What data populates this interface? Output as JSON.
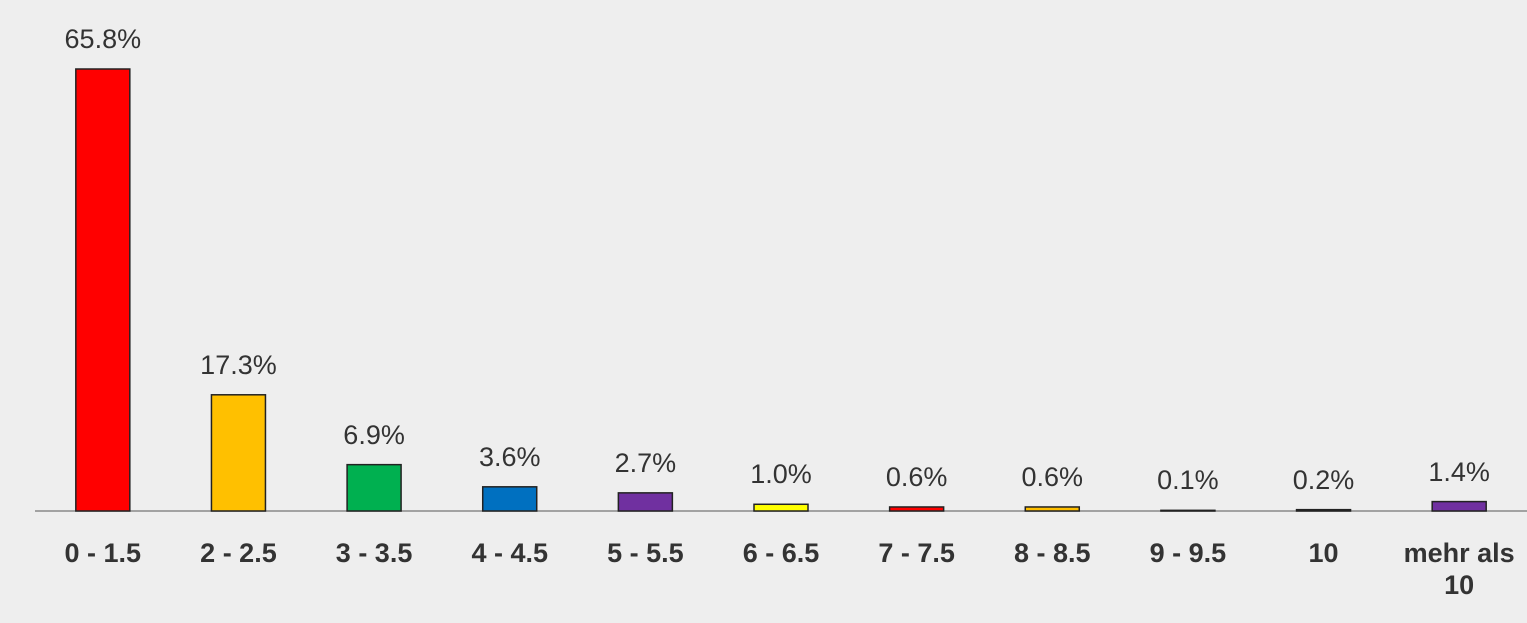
{
  "chart_data": {
    "type": "bar",
    "categories": [
      "0 - 1.5",
      "2 - 2.5",
      "3 - 3.5",
      "4 - 4.5",
      "5 - 5.5",
      "6 - 6.5",
      "7 - 7.5",
      "8 - 8.5",
      "9 - 9.5",
      "10",
      "mehr als 10"
    ],
    "values": [
      65.8,
      17.3,
      6.9,
      3.6,
      2.7,
      1.0,
      0.6,
      0.6,
      0.1,
      0.2,
      1.4
    ],
    "value_labels": [
      "65.8%",
      "17.3%",
      "6.9%",
      "3.6%",
      "2.7%",
      "1.0%",
      "0.6%",
      "0.6%",
      "0.1%",
      "0.2%",
      "1.4%"
    ],
    "colors": [
      "#ff0000",
      "#ffc000",
      "#00b050",
      "#0070c0",
      "#7030a0",
      "#ffff00",
      "#ff0000",
      "#ffc000",
      "#00b050",
      "#0070c0",
      "#7030a0"
    ]
  }
}
